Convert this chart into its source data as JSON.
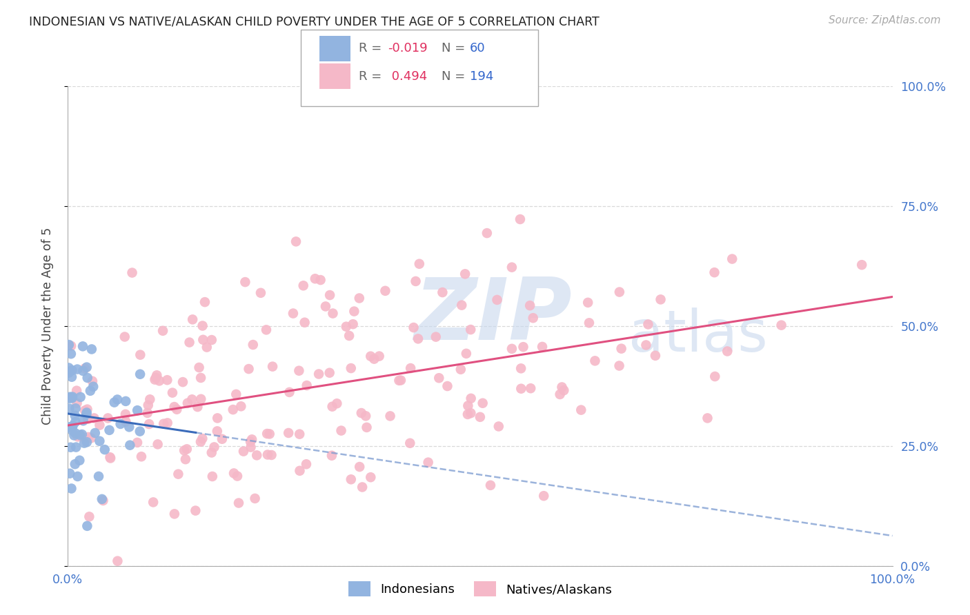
{
  "title": "INDONESIAN VS NATIVE/ALASKAN CHILD POVERTY UNDER THE AGE OF 5 CORRELATION CHART",
  "source": "Source: ZipAtlas.com",
  "ylabel": "Child Poverty Under the Age of 5",
  "background_color": "#ffffff",
  "grid_color": "#d0d0d0",
  "watermark_zip": "ZIP",
  "watermark_atlas": "atlas",
  "r1": -0.019,
  "n1": 60,
  "r2": 0.494,
  "n2": 194,
  "indonesian_color": "#92b4e0",
  "native_color": "#f5b8c8",
  "line1_color": "#3a6bba",
  "line2_color": "#e05080",
  "line1_dash_color": "#7a9ad0",
  "tick_color": "#4477cc",
  "ytick_labels": [
    "0.0%",
    "25.0%",
    "50.0%",
    "75.0%",
    "100.0%"
  ],
  "ytick_values": [
    0.0,
    0.25,
    0.5,
    0.75,
    1.0
  ],
  "xtick_labels": [
    "0.0%",
    "100.0%"
  ],
  "xlim": [
    0.0,
    1.0
  ],
  "ylim": [
    0.0,
    1.0
  ],
  "seed": 42
}
